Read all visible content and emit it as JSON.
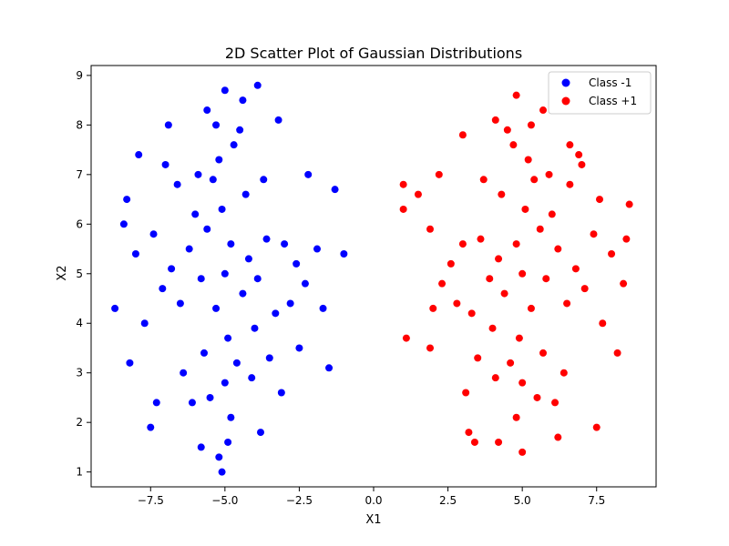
{
  "chart_data": {
    "type": "scatter",
    "title": "2D Scatter Plot of Gaussian Distributions",
    "xlabel": "X1",
    "ylabel": "X2",
    "xlim": [
      -9.5,
      9.5
    ],
    "ylim": [
      0.7,
      9.2
    ],
    "xticks": [
      -7.5,
      -5.0,
      -2.5,
      0.0,
      2.5,
      5.0,
      7.5
    ],
    "xtick_labels": [
      "−7.5",
      "−5.0",
      "−2.5",
      "0.0",
      "2.5",
      "5.0",
      "7.5"
    ],
    "yticks": [
      1,
      2,
      3,
      4,
      5,
      6,
      7,
      8,
      9
    ],
    "ytick_labels": [
      "1",
      "2",
      "3",
      "4",
      "5",
      "6",
      "7",
      "8",
      "9"
    ],
    "grid": false,
    "legend_position": "top-right",
    "series": [
      {
        "name": "Class -1",
        "color": "#0000ff",
        "points": [
          [
            -5.0,
            5.0
          ],
          [
            -4.8,
            5.6
          ],
          [
            -5.3,
            4.3
          ],
          [
            -5.6,
            5.9
          ],
          [
            -4.4,
            4.6
          ],
          [
            -5.1,
            6.3
          ],
          [
            -4.9,
            3.7
          ],
          [
            -5.8,
            4.9
          ],
          [
            -4.2,
            5.3
          ],
          [
            -5.4,
            6.9
          ],
          [
            -4.6,
            3.2
          ],
          [
            -6.2,
            5.5
          ],
          [
            -3.9,
            4.9
          ],
          [
            -5.2,
            7.3
          ],
          [
            -5.0,
            2.8
          ],
          [
            -6.5,
            4.4
          ],
          [
            -3.6,
            5.7
          ],
          [
            -5.7,
            3.4
          ],
          [
            -4.3,
            6.6
          ],
          [
            -6.0,
            6.2
          ],
          [
            -4.0,
            3.9
          ],
          [
            -5.5,
            2.5
          ],
          [
            -4.7,
            7.6
          ],
          [
            -6.8,
            5.1
          ],
          [
            -3.3,
            4.2
          ],
          [
            -5.9,
            7.0
          ],
          [
            -4.1,
            2.9
          ],
          [
            -7.1,
            4.7
          ],
          [
            -3.0,
            5.6
          ],
          [
            -6.4,
            3.0
          ],
          [
            -3.7,
            6.9
          ],
          [
            -5.3,
            8.0
          ],
          [
            -4.8,
            2.1
          ],
          [
            -7.4,
            5.8
          ],
          [
            -2.8,
            4.4
          ],
          [
            -6.6,
            6.8
          ],
          [
            -3.5,
            3.3
          ],
          [
            -6.1,
            2.4
          ],
          [
            -4.5,
            7.9
          ],
          [
            -7.7,
            4.0
          ],
          [
            -2.6,
            5.2
          ],
          [
            -5.6,
            8.3
          ],
          [
            -4.9,
            1.6
          ],
          [
            -8.0,
            5.4
          ],
          [
            -2.3,
            4.8
          ],
          [
            -7.0,
            7.2
          ],
          [
            -3.1,
            2.6
          ],
          [
            -5.0,
            8.7
          ],
          [
            -5.1,
            1.0
          ],
          [
            -8.3,
            6.5
          ],
          [
            -1.9,
            5.5
          ],
          [
            -8.7,
            4.3
          ],
          [
            -1.3,
            6.7
          ],
          [
            -1.0,
            5.4
          ],
          [
            -1.5,
            3.1
          ],
          [
            -7.3,
            2.4
          ],
          [
            -3.9,
            8.8
          ],
          [
            -5.2,
            1.3
          ],
          [
            -7.9,
            7.4
          ],
          [
            -2.2,
            7.0
          ],
          [
            -8.2,
            3.2
          ],
          [
            -2.5,
            3.5
          ],
          [
            -4.4,
            8.5
          ],
          [
            -5.8,
            1.5
          ],
          [
            -6.9,
            8.0
          ],
          [
            -3.2,
            8.1
          ],
          [
            -7.5,
            1.9
          ],
          [
            -3.8,
            1.8
          ],
          [
            -1.7,
            4.3
          ],
          [
            -8.4,
            6.0
          ]
        ]
      },
      {
        "name": "Class +1",
        "color": "#ff0000",
        "points": [
          [
            5.0,
            5.0
          ],
          [
            4.8,
            5.6
          ],
          [
            5.3,
            4.3
          ],
          [
            5.6,
            5.9
          ],
          [
            4.4,
            4.6
          ],
          [
            5.1,
            6.3
          ],
          [
            4.9,
            3.7
          ],
          [
            5.8,
            4.9
          ],
          [
            4.2,
            5.3
          ],
          [
            5.4,
            6.9
          ],
          [
            4.6,
            3.2
          ],
          [
            6.2,
            5.5
          ],
          [
            3.9,
            4.9
          ],
          [
            5.2,
            7.3
          ],
          [
            5.0,
            2.8
          ],
          [
            6.5,
            4.4
          ],
          [
            3.6,
            5.7
          ],
          [
            5.7,
            3.4
          ],
          [
            4.3,
            6.6
          ],
          [
            6.0,
            6.2
          ],
          [
            4.0,
            3.9
          ],
          [
            5.5,
            2.5
          ],
          [
            4.7,
            7.6
          ],
          [
            6.8,
            5.1
          ],
          [
            3.3,
            4.2
          ],
          [
            5.9,
            7.0
          ],
          [
            4.1,
            2.9
          ],
          [
            7.1,
            4.7
          ],
          [
            3.0,
            5.6
          ],
          [
            6.4,
            3.0
          ],
          [
            3.7,
            6.9
          ],
          [
            5.3,
            8.0
          ],
          [
            4.8,
            2.1
          ],
          [
            7.4,
            5.8
          ],
          [
            2.8,
            4.4
          ],
          [
            6.6,
            6.8
          ],
          [
            3.5,
            3.3
          ],
          [
            6.1,
            2.4
          ],
          [
            4.5,
            7.9
          ],
          [
            7.7,
            4.0
          ],
          [
            2.6,
            5.2
          ],
          [
            4.8,
            8.6
          ],
          [
            5.0,
            1.4
          ],
          [
            8.0,
            5.4
          ],
          [
            2.3,
            4.8
          ],
          [
            7.0,
            7.2
          ],
          [
            3.1,
            2.6
          ],
          [
            5.7,
            8.3
          ],
          [
            3.4,
            1.6
          ],
          [
            8.6,
            6.4
          ],
          [
            1.0,
            6.8
          ],
          [
            1.0,
            6.3
          ],
          [
            1.1,
            3.7
          ],
          [
            1.5,
            6.6
          ],
          [
            1.9,
            5.9
          ],
          [
            8.2,
            3.4
          ],
          [
            8.4,
            4.8
          ],
          [
            7.5,
            1.9
          ],
          [
            6.9,
            7.4
          ],
          [
            2.2,
            7.0
          ],
          [
            3.0,
            7.8
          ],
          [
            1.9,
            3.5
          ],
          [
            4.1,
            8.1
          ],
          [
            6.2,
            1.7
          ],
          [
            7.6,
            6.5
          ],
          [
            3.2,
            1.8
          ],
          [
            2.0,
            4.3
          ],
          [
            8.5,
            5.7
          ],
          [
            4.2,
            1.6
          ],
          [
            6.6,
            7.6
          ]
        ]
      }
    ]
  }
}
